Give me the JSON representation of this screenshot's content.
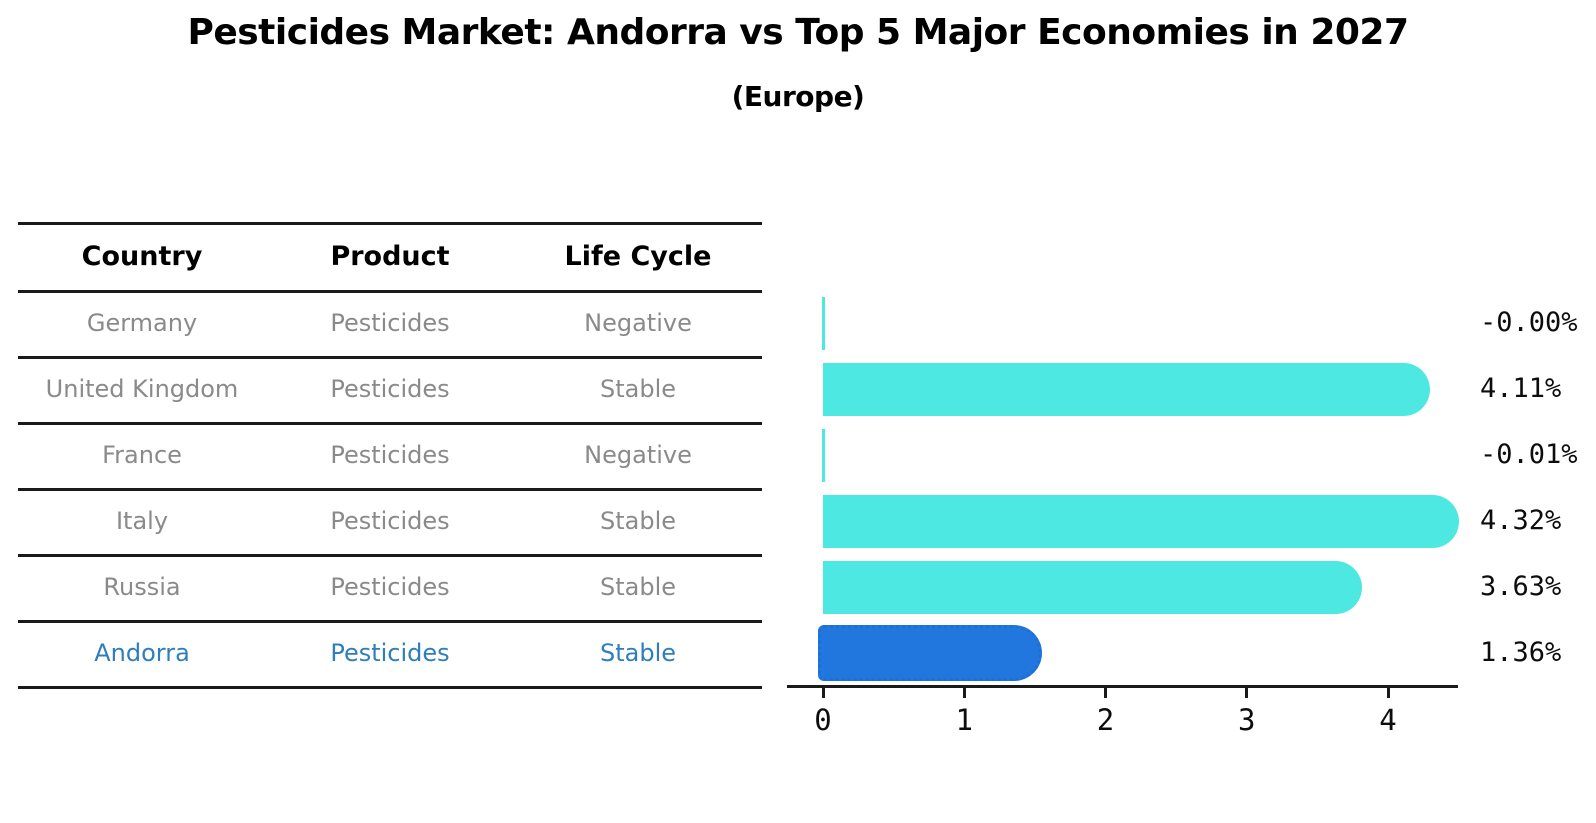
{
  "title": "Pesticides Market: Andorra vs Top 5 Major Economies in 2027",
  "subtitle": "(Europe)",
  "table": {
    "headers": [
      "Country",
      "Product",
      "Life Cycle"
    ],
    "rows": [
      {
        "country": "Germany",
        "product": "Pesticides",
        "life_cycle": "Negative",
        "highlighted": false
      },
      {
        "country": "United Kingdom",
        "product": "Pesticides",
        "life_cycle": "Stable",
        "highlighted": false
      },
      {
        "country": "France",
        "product": "Pesticides",
        "life_cycle": "Negative",
        "highlighted": false
      },
      {
        "country": "Italy",
        "product": "Pesticides",
        "life_cycle": "Stable",
        "highlighted": false
      },
      {
        "country": "Russia",
        "product": "Pesticides",
        "life_cycle": "Stable",
        "highlighted": false
      },
      {
        "country": "Andorra",
        "product": "Pesticides",
        "life_cycle": "Stable",
        "highlighted": true
      }
    ]
  },
  "chart_data": {
    "type": "bar",
    "orientation": "horizontal",
    "title": "Pesticides Market: Andorra vs Top 5 Major Economies in 2027",
    "subtitle": "(Europe)",
    "categories": [
      "Germany",
      "United Kingdom",
      "France",
      "Italy",
      "Russia",
      "Andorra"
    ],
    "values": [
      -0.0,
      4.11,
      -0.01,
      4.32,
      3.63,
      1.36
    ],
    "value_labels": [
      "-0.00%",
      "4.11%",
      "-0.01%",
      "4.32%",
      "3.63%",
      "1.36%"
    ],
    "xlabel": "",
    "ylabel": "",
    "xticks": [
      0,
      1,
      2,
      3,
      4
    ],
    "xtick_labels": [
      "0",
      "1",
      "2",
      "3",
      "4"
    ],
    "xlim": [
      0,
      4.47
    ],
    "grid": false,
    "legend": false,
    "highlight_index": 5
  },
  "colors": {
    "bar_color": "#4DE8E2",
    "highlight_bar_color": "#2277DE",
    "highlight_bar_border": "#1B6FD8",
    "highlight_text_color": "#2E7EBC",
    "row_text_color": "#8A8A8A",
    "header_text_color": "#000000",
    "axis_color": "#1A1A1A"
  }
}
